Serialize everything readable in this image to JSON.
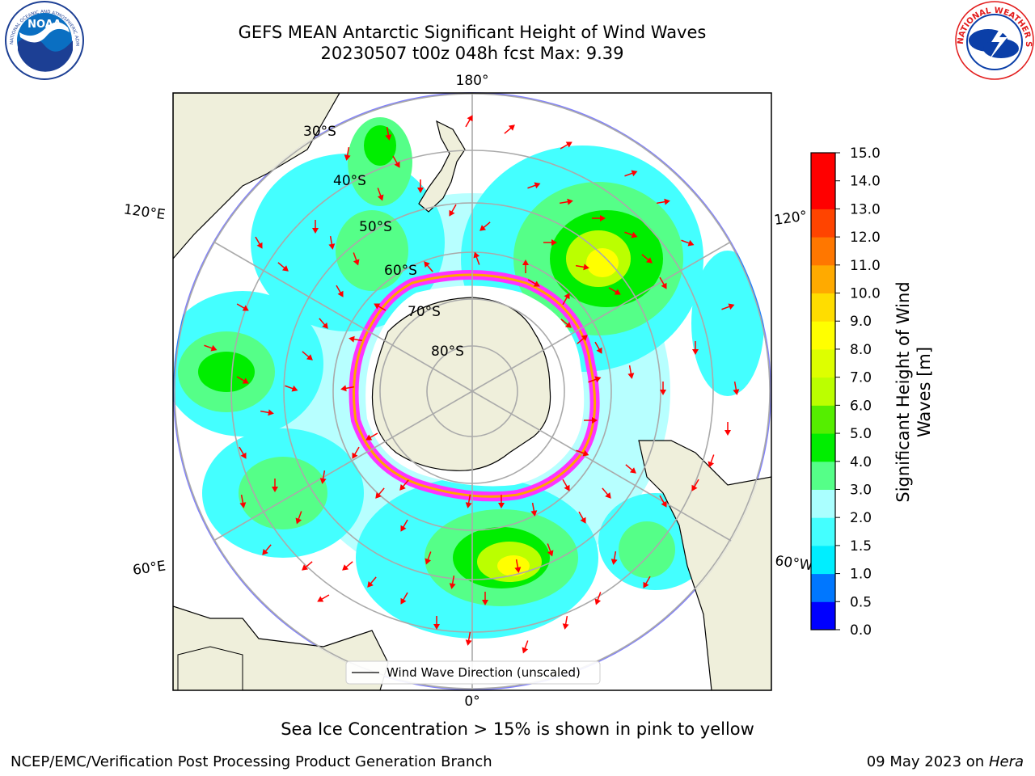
{
  "header": {
    "title_line1": "GEFS MEAN Antarctic Significant Height of Wind Waves",
    "title_line2": "20230507 t00z 048h fcst   Max: 9.39"
  },
  "logos": {
    "left": "noaa-logo",
    "right": "nws-logo",
    "left_text": "NOAA",
    "left_ring_text": "NATIONAL OCEANIC AND ATMOSPHERIC ADMINISTRATION · U.S. DEPARTMENT OF COMMERCE",
    "right_ring_text": "NATIONAL WEATHER SERVICE"
  },
  "map": {
    "projection": "south-polar-stereographic",
    "lon_labels": [
      "180°",
      "120°E",
      "120°",
      "60°E",
      "60°W",
      "0°"
    ],
    "lat_labels": [
      "30°S",
      "40°S",
      "50°S",
      "60°S",
      "70°S",
      "80°S"
    ],
    "legend_label": "Wind Wave Direction (unscaled)",
    "arrow_color": "#ff0000",
    "land_color": "#efefdb",
    "ice_colors": [
      "#ff33ff",
      "#ffa500",
      "#ffff00"
    ]
  },
  "colorbar": {
    "label_line1": "Significant Height of Wind",
    "label_line2": "Waves [m]",
    "ticks": [
      "0.0",
      "0.5",
      "1.0",
      "1.5",
      "2.0",
      "3.0",
      "4.0",
      "5.0",
      "6.0",
      "7.0",
      "8.0",
      "9.0",
      "10.0",
      "11.0",
      "12.0",
      "13.0",
      "14.0",
      "15.0"
    ],
    "colors": [
      "#0000ff",
      "#0077ff",
      "#00eeff",
      "#44ffff",
      "#aaffff",
      "#55ff88",
      "#00ee00",
      "#55ee00",
      "#bbff00",
      "#ddff00",
      "#ffff00",
      "#ffdd00",
      "#ffaa00",
      "#ff7700",
      "#ff4400",
      "#ff0000",
      "#ff0000"
    ]
  },
  "caption": "Sea Ice Concentration > 15% is shown in pink to yellow",
  "footer": {
    "left": "NCEP/EMC/Verification Post Processing Product Generation Branch",
    "date": "09 May 2023 on",
    "host": "Hera"
  }
}
